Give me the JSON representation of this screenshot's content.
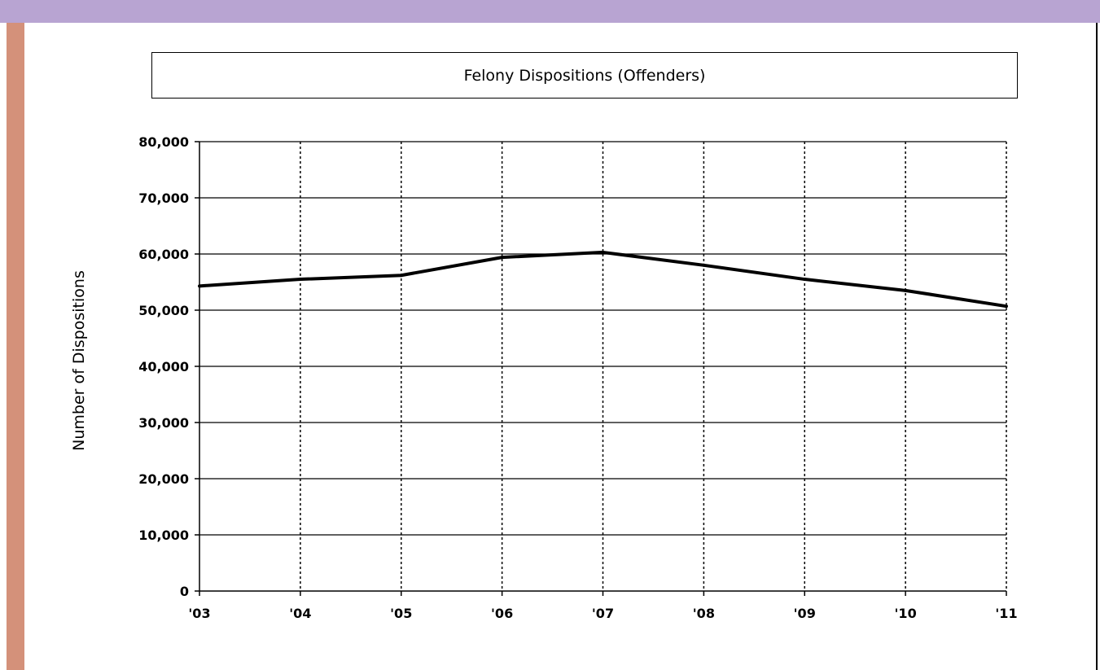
{
  "chart_data": {
    "type": "line",
    "title": "Felony Dispositions (Offenders)",
    "xlabel": "",
    "ylabel": "Number of Dispositions",
    "categories": [
      "'03",
      "'04",
      "'05",
      "'06",
      "'07",
      "'08",
      "'09",
      "'10",
      "'11"
    ],
    "series": [
      {
        "values": [
          54300,
          55500,
          56200,
          59400,
          60300,
          58000,
          55500,
          53500,
          50700
        ]
      }
    ],
    "ylim": [
      0,
      80000
    ],
    "yticks": [
      0,
      10000,
      20000,
      30000,
      40000,
      50000,
      60000,
      70000,
      80000
    ],
    "ytick_labels": [
      "0",
      "10,000",
      "20,000",
      "30,000",
      "40,000",
      "50,000",
      "60,000",
      "70,000",
      "80,000"
    ],
    "grid": {
      "horizontal": "solid",
      "vertical": "dotted"
    },
    "colors": {
      "line": "#000000",
      "top_bar": "#b8a4d2",
      "left_bar": "#d4917a"
    }
  }
}
